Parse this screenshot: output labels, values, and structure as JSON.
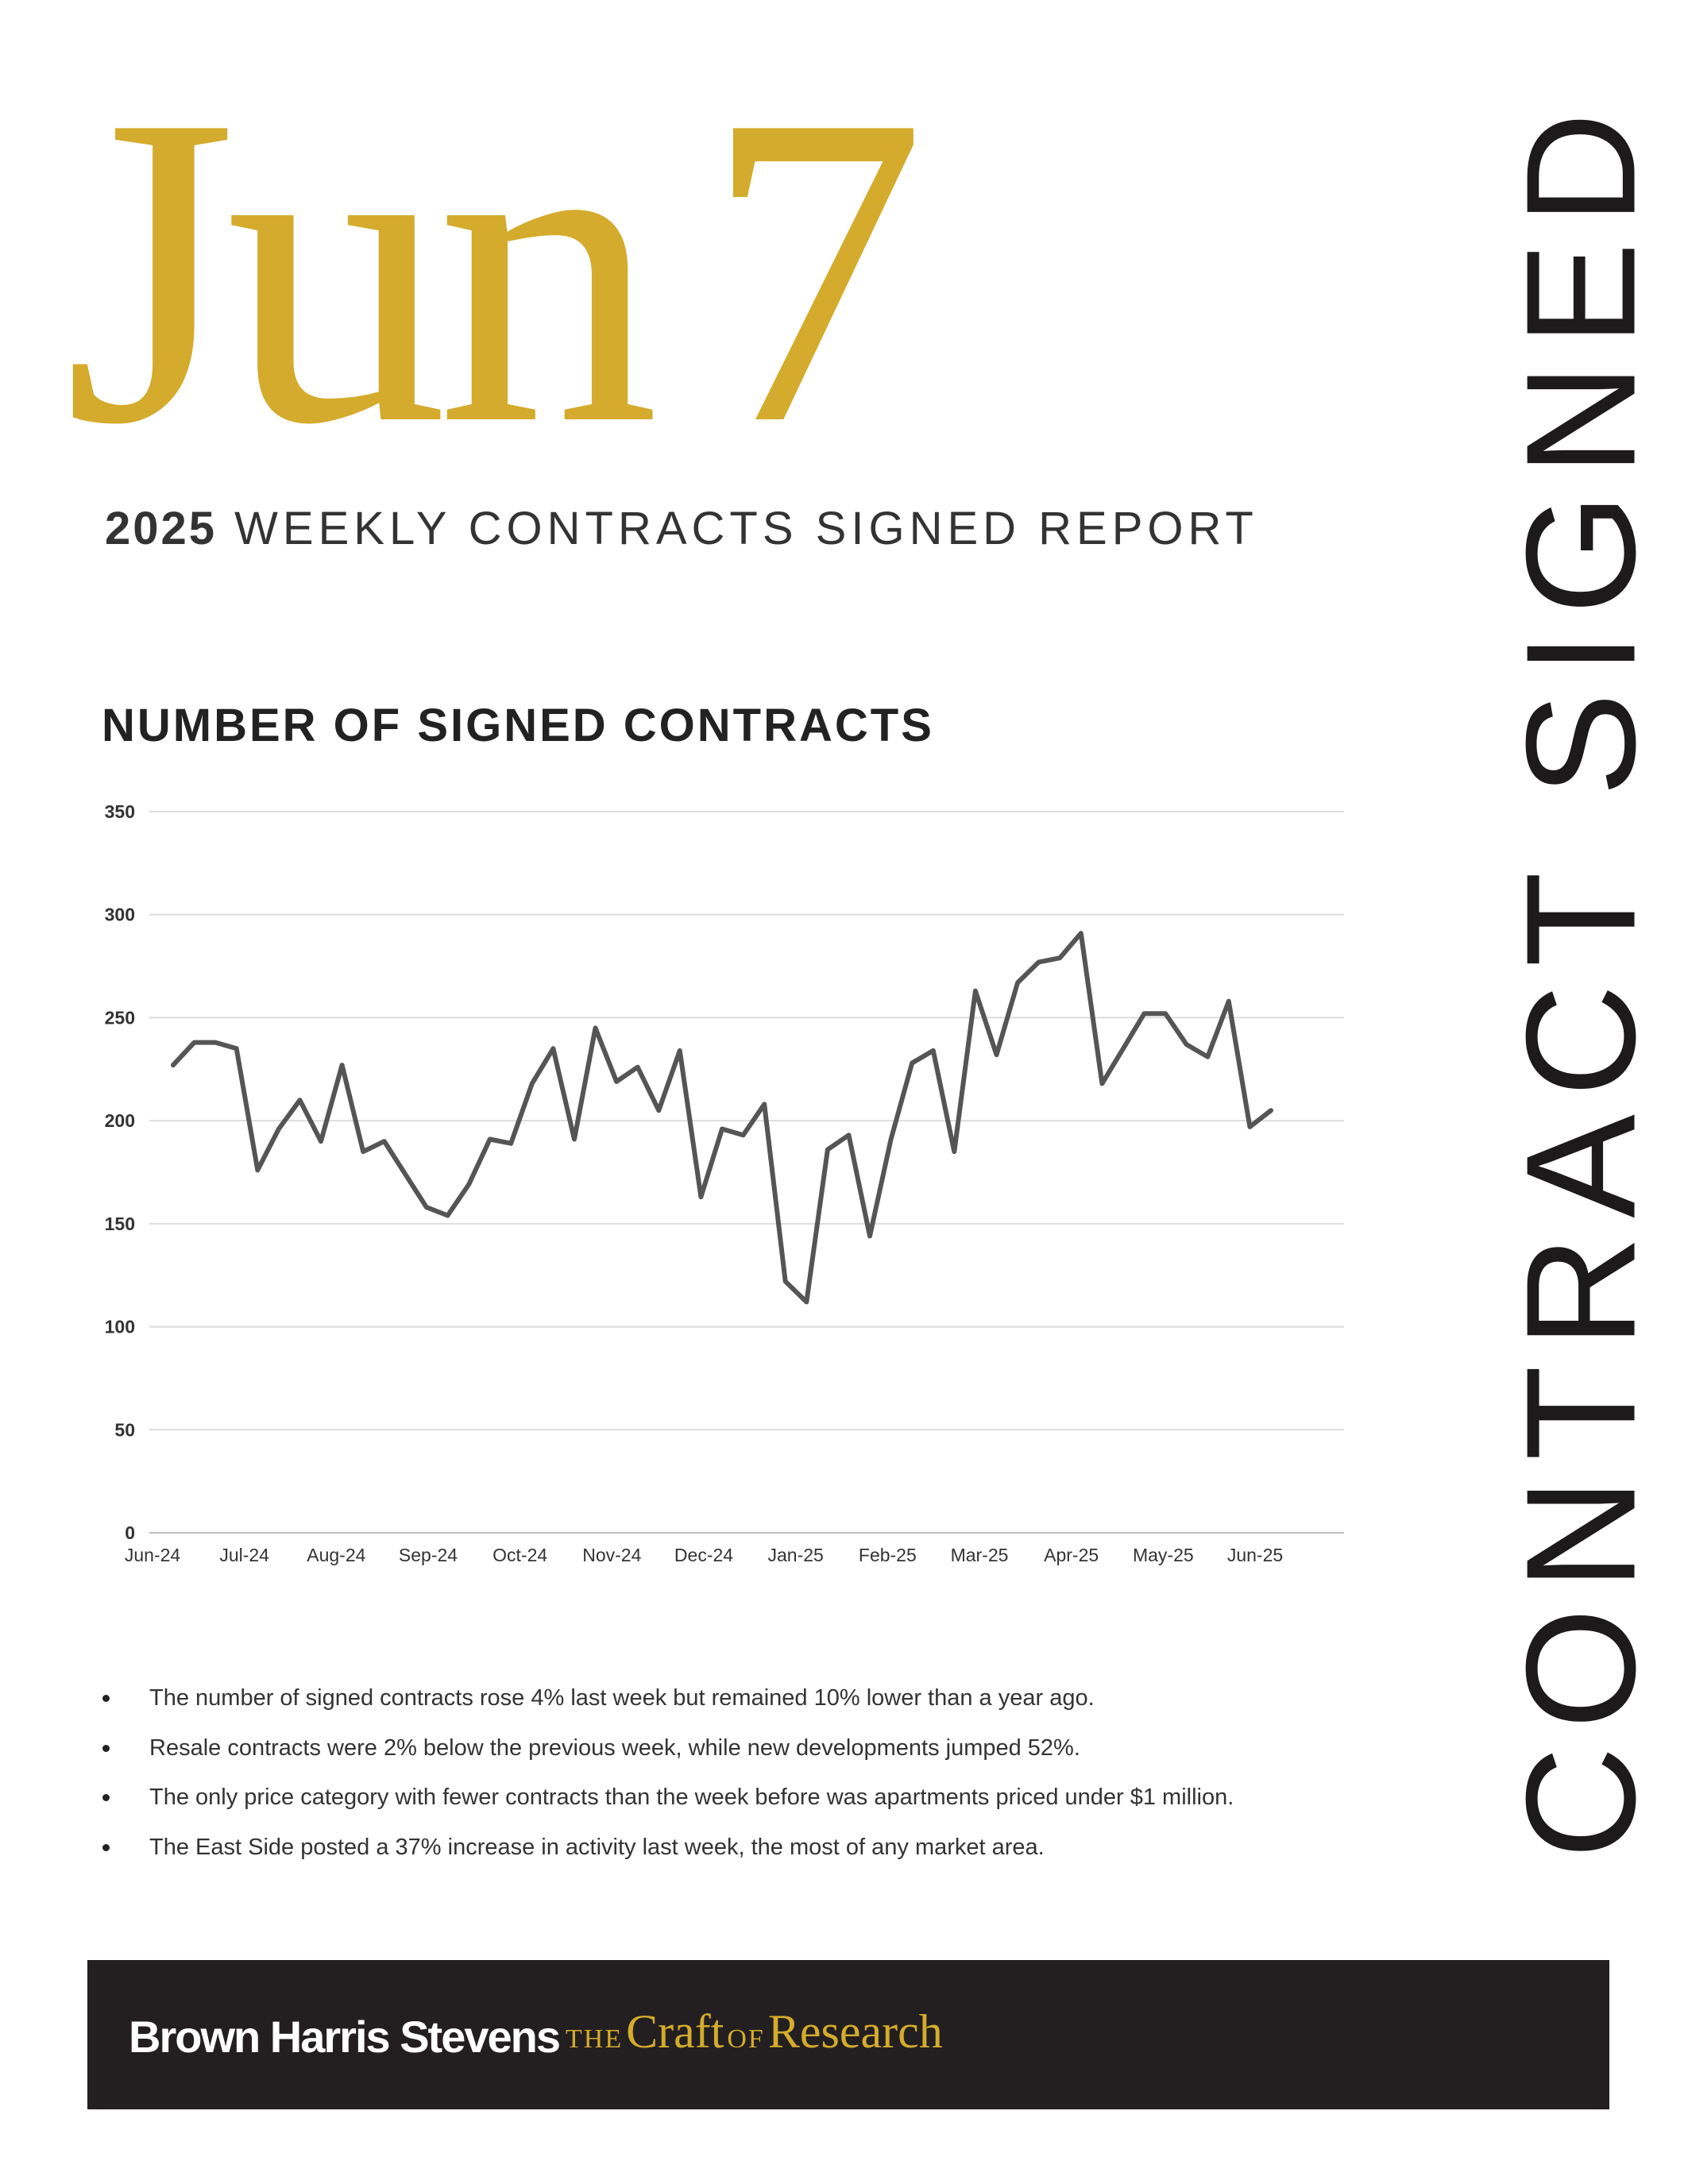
{
  "header": {
    "date_month": "Jun",
    "date_day": "7",
    "report_year": "2025",
    "report_title": "WEEKLY CONTRACTS SIGNED REPORT",
    "vertical_title": "CONTRACT SIGNED",
    "accent_color": "#d4ab2d"
  },
  "chart": {
    "title": "NUMBER OF SIGNED CONTRACTS"
  },
  "chart_data": {
    "type": "line",
    "title": "NUMBER OF SIGNED CONTRACTS",
    "xlabel": "",
    "ylabel": "",
    "ylim": [
      0,
      350
    ],
    "yticks": [
      0,
      50,
      100,
      150,
      200,
      250,
      300,
      350
    ],
    "grid": true,
    "legend": "none",
    "line_color": "#555555",
    "x_tick_labels": [
      "Jun-24",
      "Jul-24",
      "Aug-24",
      "Sep-24",
      "Oct-24",
      "Nov-24",
      "Dec-24",
      "Jan-25",
      "Feb-25",
      "Mar-25",
      "Apr-25",
      "May-25",
      "Jun-25"
    ],
    "series": [
      {
        "values": [
          227,
          238,
          238,
          235,
          176,
          196,
          210,
          190,
          227,
          185,
          190,
          174,
          158,
          154,
          169,
          191,
          189,
          218,
          235,
          191,
          245,
          219,
          226,
          205,
          234,
          163,
          196,
          193,
          208,
          122,
          112,
          186,
          193,
          144,
          191,
          228,
          234,
          185,
          263,
          232,
          267,
          277,
          279,
          291,
          218,
          235,
          252,
          252,
          237,
          231,
          258,
          197,
          205
        ]
      }
    ]
  },
  "bullets": [
    "The number of signed contracts rose 4% last week but remained 10% lower than a year ago.",
    "Resale contracts were 2% below the previous week, while new developments jumped 52%.",
    "The only price category with fewer contracts than the week before was apartments priced under $1 million.",
    "The East Side posted a 37% increase in activity last week, the most of any market area."
  ],
  "footer": {
    "brand": "Brown Harris Stevens",
    "tagline_the": "THE",
    "tagline_craft": "Craft",
    "tagline_of": "OF",
    "tagline_research": "Research"
  }
}
